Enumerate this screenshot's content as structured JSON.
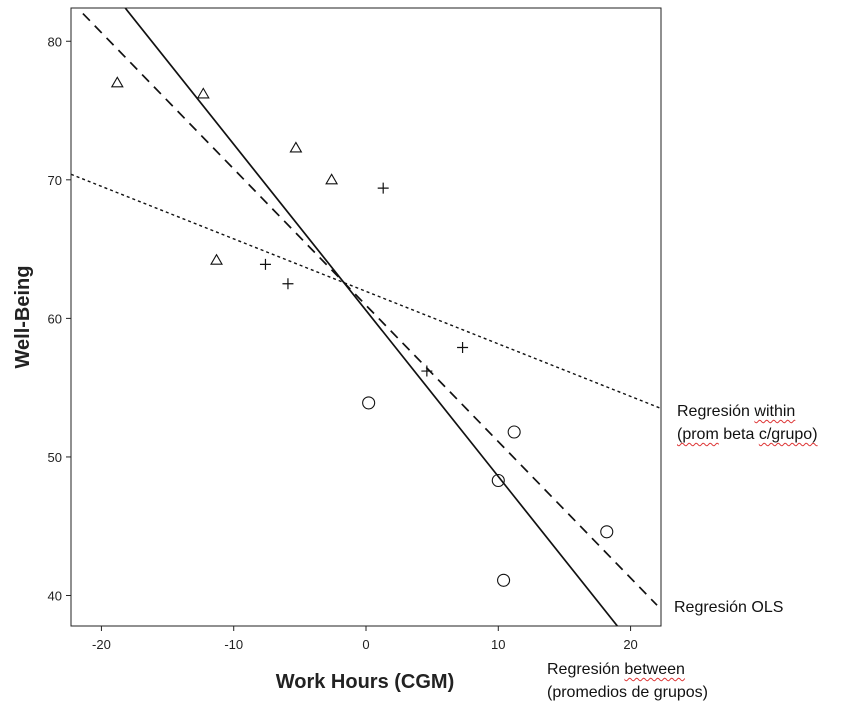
{
  "chart_data": {
    "type": "scatter",
    "title": "",
    "xlabel": "Work Hours (CGM)",
    "ylabel": "Well-Being",
    "xlim": [
      -22.3,
      22.3
    ],
    "ylim": [
      37.8,
      82.4
    ],
    "xticks": [
      -20,
      -10,
      0,
      10,
      20
    ],
    "yticks": [
      40,
      50,
      60,
      70,
      80
    ],
    "grid": false,
    "series": [
      {
        "marker": "triangle",
        "points": [
          {
            "x": -18.8,
            "y": 77.0
          },
          {
            "x": -12.3,
            "y": 76.2
          },
          {
            "x": -5.3,
            "y": 72.3
          },
          {
            "x": -2.6,
            "y": 70.0
          },
          {
            "x": -11.3,
            "y": 64.2
          }
        ]
      },
      {
        "marker": "plus",
        "points": [
          {
            "x": 1.3,
            "y": 69.4
          },
          {
            "x": -7.6,
            "y": 63.9
          },
          {
            "x": -5.9,
            "y": 62.5
          },
          {
            "x": 4.6,
            "y": 56.2
          },
          {
            "x": 7.3,
            "y": 57.9
          }
        ]
      },
      {
        "marker": "circle",
        "points": [
          {
            "x": 0.2,
            "y": 53.9
          },
          {
            "x": 11.2,
            "y": 51.8
          },
          {
            "x": 10.0,
            "y": 48.3
          },
          {
            "x": 18.2,
            "y": 44.6
          },
          {
            "x": 10.4,
            "y": 41.1
          }
        ]
      }
    ],
    "lines": [
      {
        "style": "solid",
        "x": [
          -18.2,
          19.0
        ],
        "y": [
          82.4,
          37.8
        ],
        "label_lines": [
          "Regresión between",
          "(promedios de grupos)"
        ]
      },
      {
        "style": "dashed",
        "x": [
          -21.4,
          22.0
        ],
        "y": [
          82.0,
          39.3
        ],
        "label_lines": [
          "Regresión OLS"
        ]
      },
      {
        "style": "dotted",
        "x": [
          -22.3,
          22.3
        ],
        "y": [
          70.4,
          53.5
        ],
        "label_lines": [
          "Regresión within",
          "(prom beta c/grupo)"
        ]
      }
    ]
  }
}
